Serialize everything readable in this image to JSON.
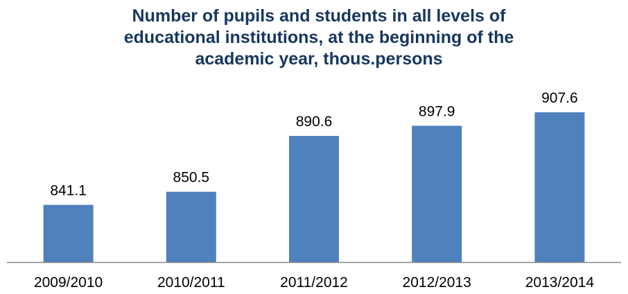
{
  "chart_data": {
    "type": "bar",
    "title": "Number of pupils and students in all levels of educational institutions, at the beginning of the academic year, thous.persons",
    "title_lines": [
      "Number of pupils and students in all levels of",
      "educational institutions, at the beginning of the",
      "academic year, thous.persons"
    ],
    "categories": [
      "2009/2010",
      "2010/2011",
      "2011/2012",
      "2012/2013",
      "2013/2014"
    ],
    "values": [
      841.1,
      850.5,
      890.6,
      897.9,
      907.6
    ],
    "value_labels": [
      "841.1",
      "850.5",
      "890.6",
      "897.9",
      "907.6"
    ],
    "xlabel": "",
    "ylabel": "",
    "ylim": [
      800,
      920
    ],
    "grid": false,
    "legend": "none",
    "colors": {
      "bar": "#4f81bd",
      "title": "#17375e",
      "axis": "#868686",
      "label": "#000000"
    }
  }
}
